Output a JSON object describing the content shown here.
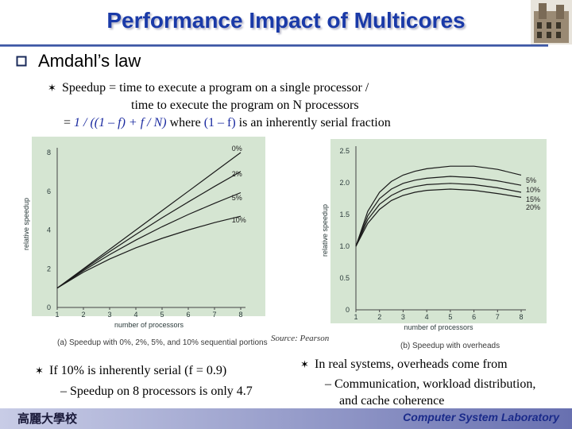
{
  "title": "Performance Impact of Multicores",
  "heading": "Amdahl’s law",
  "definition": {
    "line1": "Speedup = time to execute a program on a single processor /",
    "line2": "time to execute the program on N processors",
    "line3_prefix": "= ",
    "line3_formula": "1 / ((1 – f) + f / N)",
    "line3_mid": " where ",
    "line3_term": "(1 – f)",
    "line3_suffix": " is an inherently serial fraction"
  },
  "source": "Source: Pearson",
  "left_point": {
    "line1": "If 10% is inherently serial (f = 0.9)",
    "line2": "– Speedup on 8 processors is only 4.7"
  },
  "right_point": {
    "line1": "In real systems, overheads come from",
    "line2": "– Communication, workload distribution,",
    "line3": "and cache coherence"
  },
  "footer": {
    "logo_text": "高麗大學校",
    "lab": "Computer System Laboratory"
  },
  "icons": {
    "bullet": "square-bullet-icon",
    "sub_bullet": "star-bullet-icon",
    "logo": "university-building-icon"
  },
  "chart_data": [
    {
      "type": "line",
      "title": "",
      "caption": "(a) Speedup with 0%, 2%, 5%, and 10% sequential portions",
      "xlabel": "number of processors",
      "ylabel": "relative speedup",
      "xlim": [
        1,
        8
      ],
      "ylim": [
        0,
        8
      ],
      "x_ticks": [
        1,
        2,
        3,
        4,
        5,
        6,
        7,
        8
      ],
      "y_ticks": [
        0,
        2,
        4,
        6,
        8
      ],
      "grid": false,
      "x": [
        1,
        2,
        3,
        4,
        5,
        6,
        7,
        8
      ],
      "series": [
        {
          "name": "0%",
          "values": [
            1,
            2,
            3,
            4,
            5,
            6,
            7,
            8
          ]
        },
        {
          "name": "2%",
          "values": [
            1,
            1.96,
            2.88,
            3.77,
            4.63,
            5.45,
            6.25,
            7.02
          ]
        },
        {
          "name": "5%",
          "values": [
            1,
            1.9,
            2.73,
            3.48,
            4.17,
            4.8,
            5.38,
            5.93
          ]
        },
        {
          "name": "10%",
          "values": [
            1,
            1.82,
            2.5,
            3.08,
            3.57,
            4.0,
            4.38,
            4.71
          ]
        }
      ]
    },
    {
      "type": "line",
      "title": "",
      "caption": "(b) Speedup with overheads",
      "xlabel": "number of processors",
      "ylabel": "relative speedup",
      "xlim": [
        1,
        8
      ],
      "ylim": [
        0,
        2.5
      ],
      "x_ticks": [
        1,
        2,
        3,
        4,
        5,
        6,
        7,
        8
      ],
      "y_ticks": [
        0,
        0.5,
        1.0,
        1.5,
        2.0,
        2.5
      ],
      "grid": false,
      "x": [
        1,
        1.5,
        2,
        2.5,
        3,
        3.5,
        4,
        5,
        6,
        7,
        8
      ],
      "series": [
        {
          "name": "5%",
          "values": [
            1.0,
            1.55,
            1.85,
            2.02,
            2.12,
            2.18,
            2.22,
            2.26,
            2.26,
            2.21,
            2.12
          ]
        },
        {
          "name": "10%",
          "values": [
            1.0,
            1.48,
            1.75,
            1.9,
            1.99,
            2.04,
            2.07,
            2.1,
            2.08,
            2.03,
            1.96
          ]
        },
        {
          "name": "15%",
          "values": [
            1.0,
            1.42,
            1.66,
            1.8,
            1.89,
            1.94,
            1.97,
            1.99,
            1.97,
            1.92,
            1.85
          ]
        },
        {
          "name": "20%",
          "values": [
            1.0,
            1.36,
            1.58,
            1.72,
            1.8,
            1.85,
            1.88,
            1.9,
            1.88,
            1.83,
            1.77
          ]
        }
      ]
    }
  ]
}
